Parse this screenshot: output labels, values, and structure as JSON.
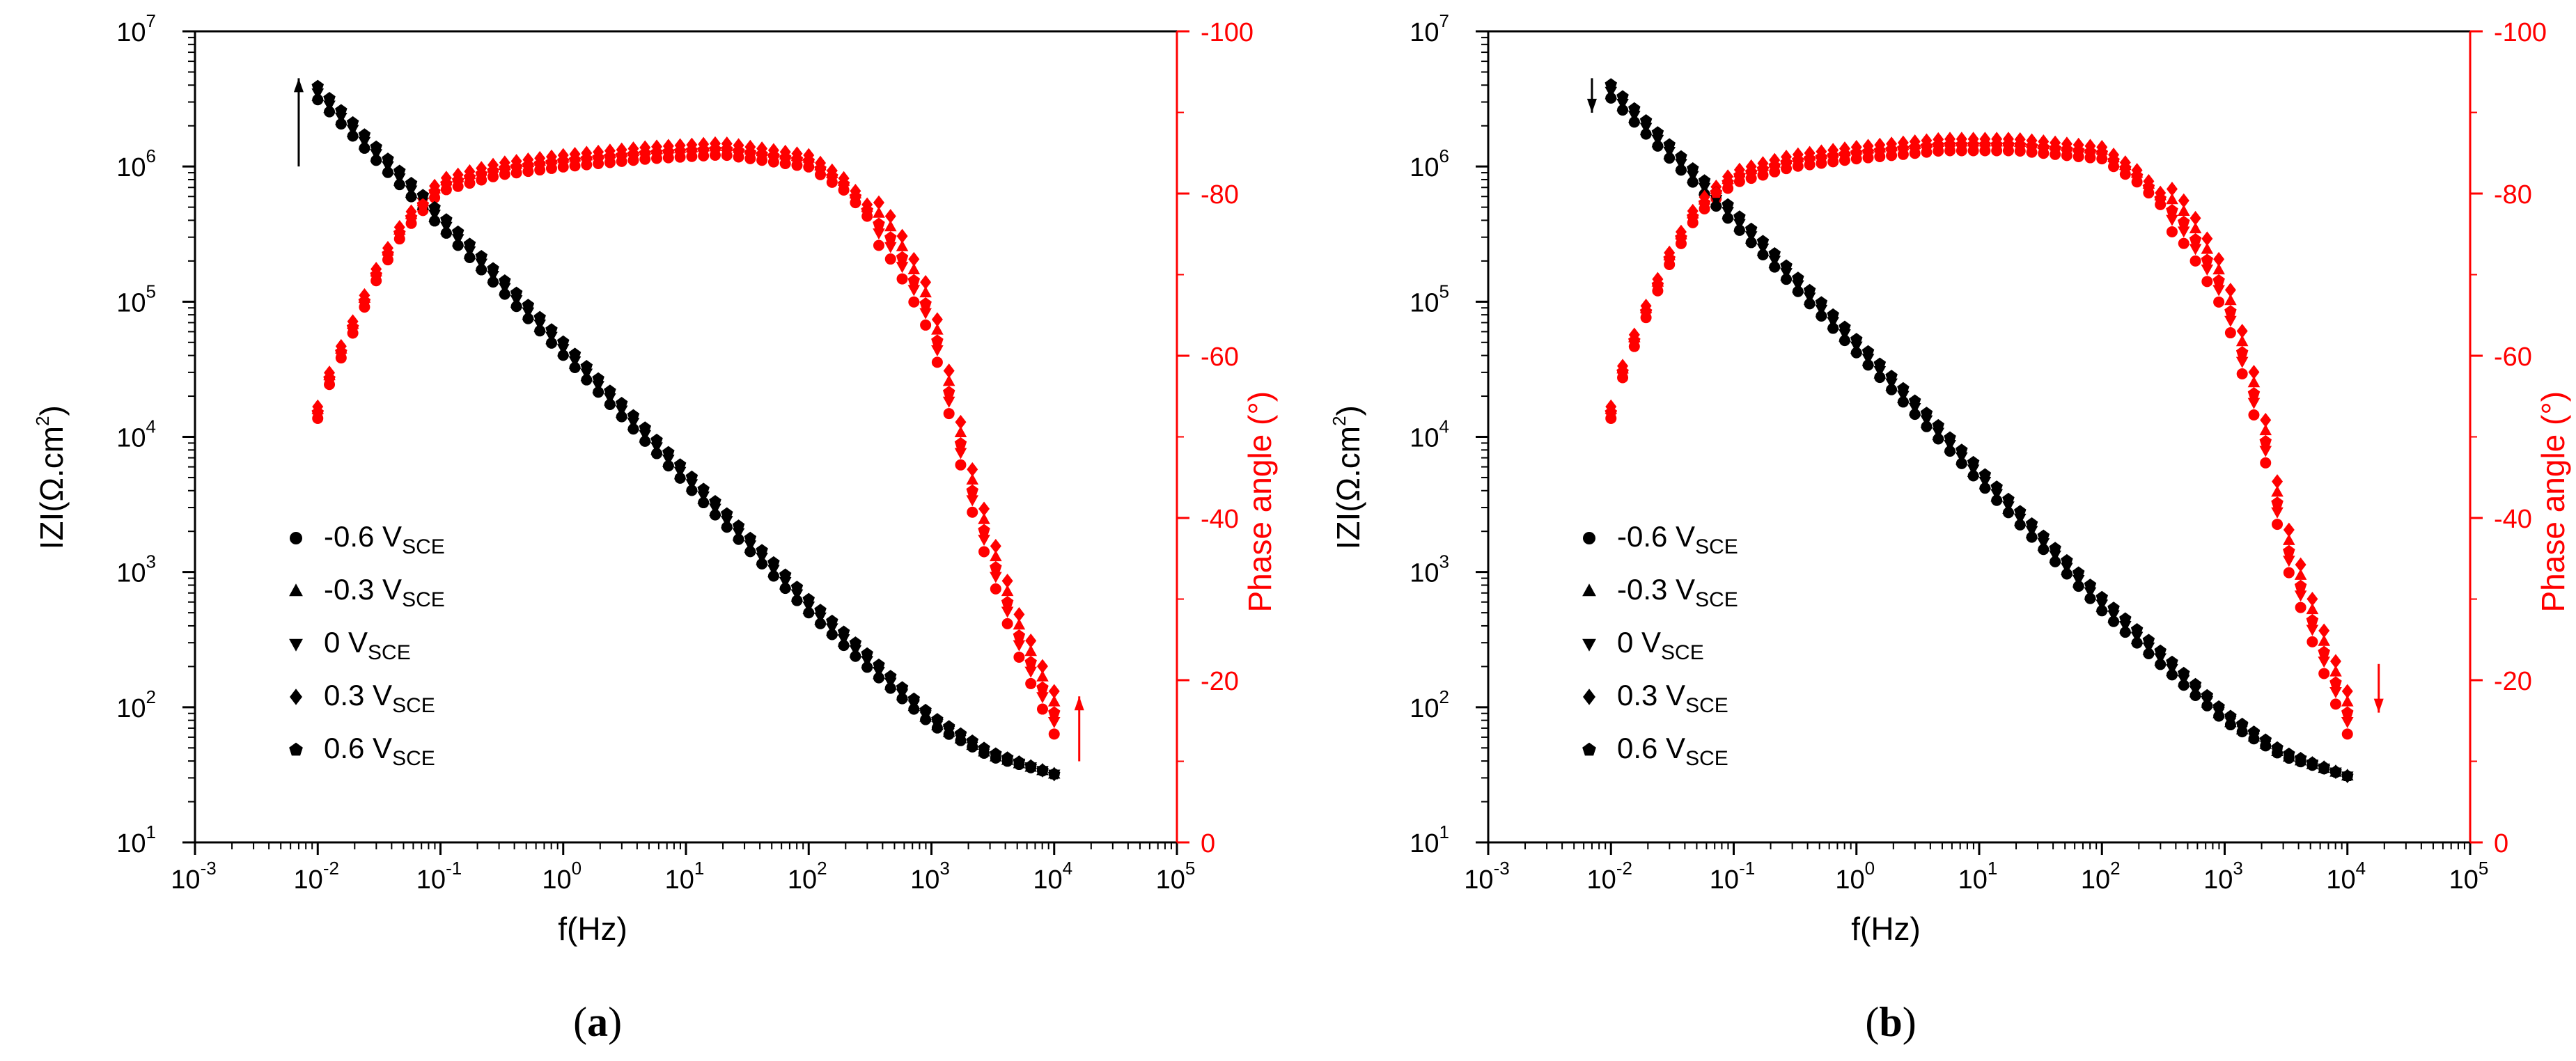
{
  "chart_data": [
    {
      "type": "scatter",
      "panel": "a",
      "caption_open": "(",
      "caption_letter": "a",
      "caption_close": ")",
      "xlabel": "f(Hz)",
      "ylabel_left": "|Z|(Ω.cm²)",
      "ylabel_left_main": "IZI(Ω.cm",
      "ylabel_left_sup": "2",
      "ylabel_left_close": ")",
      "ylabel_right": "Phase angle (°)",
      "x_scale": "log",
      "xlim": [
        0.001,
        100000
      ],
      "x_tick_exponents": [
        "-3",
        "-2",
        "-1",
        "0",
        "1",
        "2",
        "3",
        "4",
        "5"
      ],
      "y_left_scale": "log",
      "ylim_left": [
        10,
        10000000
      ],
      "y_left_tick_exponents": [
        "1",
        "2",
        "3",
        "4",
        "5",
        "6",
        "7"
      ],
      "ylim_right": [
        0,
        -100
      ],
      "y_right_ticks": [
        "0",
        "-20",
        "-40",
        "-60",
        "-80",
        "-100"
      ],
      "legend_position": "lower-left",
      "legend": [
        {
          "name": "-0.6 V",
          "sub": "SCE",
          "marker": "circle"
        },
        {
          "name": "-0.3 V",
          "sub": "SCE",
          "marker": "triangle-up"
        },
        {
          "name": "0    V",
          "sub": "SCE",
          "marker": "triangle-down"
        },
        {
          "name": "0.3 V",
          "sub": "SCE",
          "marker": "diamond"
        },
        {
          "name": "0.6 V",
          "sub": "SCE",
          "marker": "pentagon"
        }
      ],
      "series_z_color": "#000000",
      "series_phase_color": "#ff0000",
      "potentials": [
        "-0.6",
        "-0.3",
        "0",
        "0.3",
        "0.6"
      ],
      "z_anchors": {
        "f": [
          0.01,
          0.1,
          1,
          10,
          100,
          1000,
          3000,
          10000
        ],
        "z": [
          3500000,
          400000,
          45000,
          5000,
          560,
          80,
          45,
          32
        ]
      },
      "phase_anchors": {
        "f": [
          0.01,
          0.013,
          0.02,
          0.03,
          0.05,
          0.1,
          0.3,
          1,
          5,
          20,
          100,
          200,
          500,
          1000,
          2000,
          3000,
          5000,
          7000,
          10000
        ],
        "phase": [
          -53,
          -58,
          -64,
          -70,
          -76,
          -81,
          -83,
          -84,
          -85,
          -85.5,
          -84,
          -81,
          -74,
          -65,
          -45,
          -36,
          -26,
          -21,
          -16
        ]
      },
      "arrow_direction": "up",
      "arrow_z": {
        "f": 0.007,
        "z_from": 1000000,
        "z_to": 4500000
      },
      "arrow_phase": {
        "f": 16000,
        "phase_from": -10,
        "phase_to": -18
      }
    },
    {
      "type": "scatter",
      "panel": "b",
      "caption_open": "(",
      "caption_letter": "b",
      "caption_close": ")",
      "xlabel": "f(Hz)",
      "ylabel_left": "|Z|(Ω.cm²)",
      "ylabel_left_main": "IZI(Ω.cm",
      "ylabel_left_sup": "2",
      "ylabel_left_close": ")",
      "ylabel_right": "Phase angle (°)",
      "x_scale": "log",
      "xlim": [
        0.001,
        100000
      ],
      "x_tick_exponents": [
        "-3",
        "-2",
        "-1",
        "0",
        "1",
        "2",
        "3",
        "4",
        "5"
      ],
      "y_left_scale": "log",
      "ylim_left": [
        10,
        10000000
      ],
      "y_left_tick_exponents": [
        "1",
        "2",
        "3",
        "4",
        "5",
        "6",
        "7"
      ],
      "ylim_right": [
        0,
        -100
      ],
      "y_right_ticks": [
        "0",
        "-20",
        "-40",
        "-60",
        "-80",
        "-100"
      ],
      "legend_position": "lower-left",
      "legend": [
        {
          "name": "-0.6 V",
          "sub": "SCE",
          "marker": "circle"
        },
        {
          "name": "-0.3 V",
          "sub": "SCE",
          "marker": "triangle-up"
        },
        {
          "name": "0    V",
          "sub": "SCE",
          "marker": "triangle-down"
        },
        {
          "name": "0.3 V",
          "sub": "SCE",
          "marker": "diamond"
        },
        {
          "name": "0.6 V",
          "sub": "SCE",
          "marker": "pentagon"
        }
      ],
      "series_z_color": "#000000",
      "series_phase_color": "#ff0000",
      "potentials": [
        "-0.6",
        "-0.3",
        "0",
        "0.3",
        "0.6"
      ],
      "z_anchors": {
        "f": [
          0.01,
          0.1,
          1,
          10,
          100,
          1000,
          3000,
          10000
        ],
        "z": [
          3600000,
          420000,
          47000,
          5200,
          580,
          85,
          45,
          31
        ]
      },
      "phase_anchors": {
        "f": [
          0.01,
          0.013,
          0.02,
          0.03,
          0.05,
          0.1,
          0.3,
          1,
          5,
          20,
          100,
          200,
          500,
          1000,
          2000,
          3000,
          5000,
          7000,
          10000
        ],
        "phase": [
          -53,
          -59,
          -66,
          -72,
          -78,
          -82,
          -84,
          -85,
          -86,
          -86,
          -85,
          -82,
          -76,
          -68,
          -52,
          -38,
          -28,
          -22,
          -16
        ]
      },
      "arrow_direction": "down",
      "arrow_z": {
        "f": 0.007,
        "z_from": 4500000,
        "z_to": 2500000
      },
      "arrow_phase": {
        "f": 18000,
        "phase_from": -22,
        "phase_to": -16
      }
    }
  ]
}
